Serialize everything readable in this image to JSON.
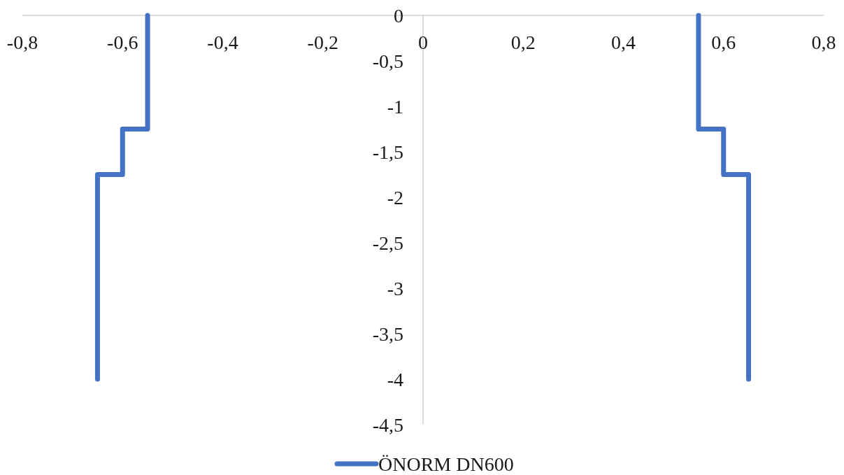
{
  "chart_data": {
    "type": "line",
    "xlim": [
      -0.8,
      0.8
    ],
    "xticks": [
      {
        "value": -0.8,
        "label": "-0,8"
      },
      {
        "value": -0.6,
        "label": "-0,6"
      },
      {
        "value": -0.4,
        "label": "-0,4"
      },
      {
        "value": -0.2,
        "label": "-0,2"
      },
      0,
      {
        "value": 0.2,
        "label": "0,2"
      },
      {
        "value": 0.4,
        "label": "0,4"
      },
      {
        "value": 0.6,
        "label": "0,6"
      },
      {
        "value": 0.8,
        "label": "0,8"
      }
    ],
    "ylim": [
      -4.5,
      0
    ],
    "yticks": [
      0,
      {
        "value": -0.5,
        "label": "-0,5"
      },
      -1,
      {
        "value": -1.5,
        "label": "-1,5"
      },
      -2,
      {
        "value": -2.5,
        "label": "-2,5"
      },
      -3,
      {
        "value": -3.5,
        "label": "-3,5"
      },
      -4,
      {
        "value": -4.5,
        "label": "-4,5"
      }
    ],
    "series": [
      {
        "name": "ÖNORM DN600",
        "color": "#4472c4",
        "x": [
          -0.65,
          -0.65,
          -0.6,
          -0.6,
          -0.55,
          -0.55,
          0,
          0.55,
          0.55,
          0.6,
          0.6,
          0.65,
          0.65
        ],
        "values": [
          -4,
          -1.75,
          -1.75,
          -1.25,
          -1.25,
          0,
          null,
          0,
          -1.25,
          -1.25,
          -1.75,
          -1.75,
          -4
        ]
      }
    ],
    "legend": "bottom",
    "line_style": "solid"
  }
}
